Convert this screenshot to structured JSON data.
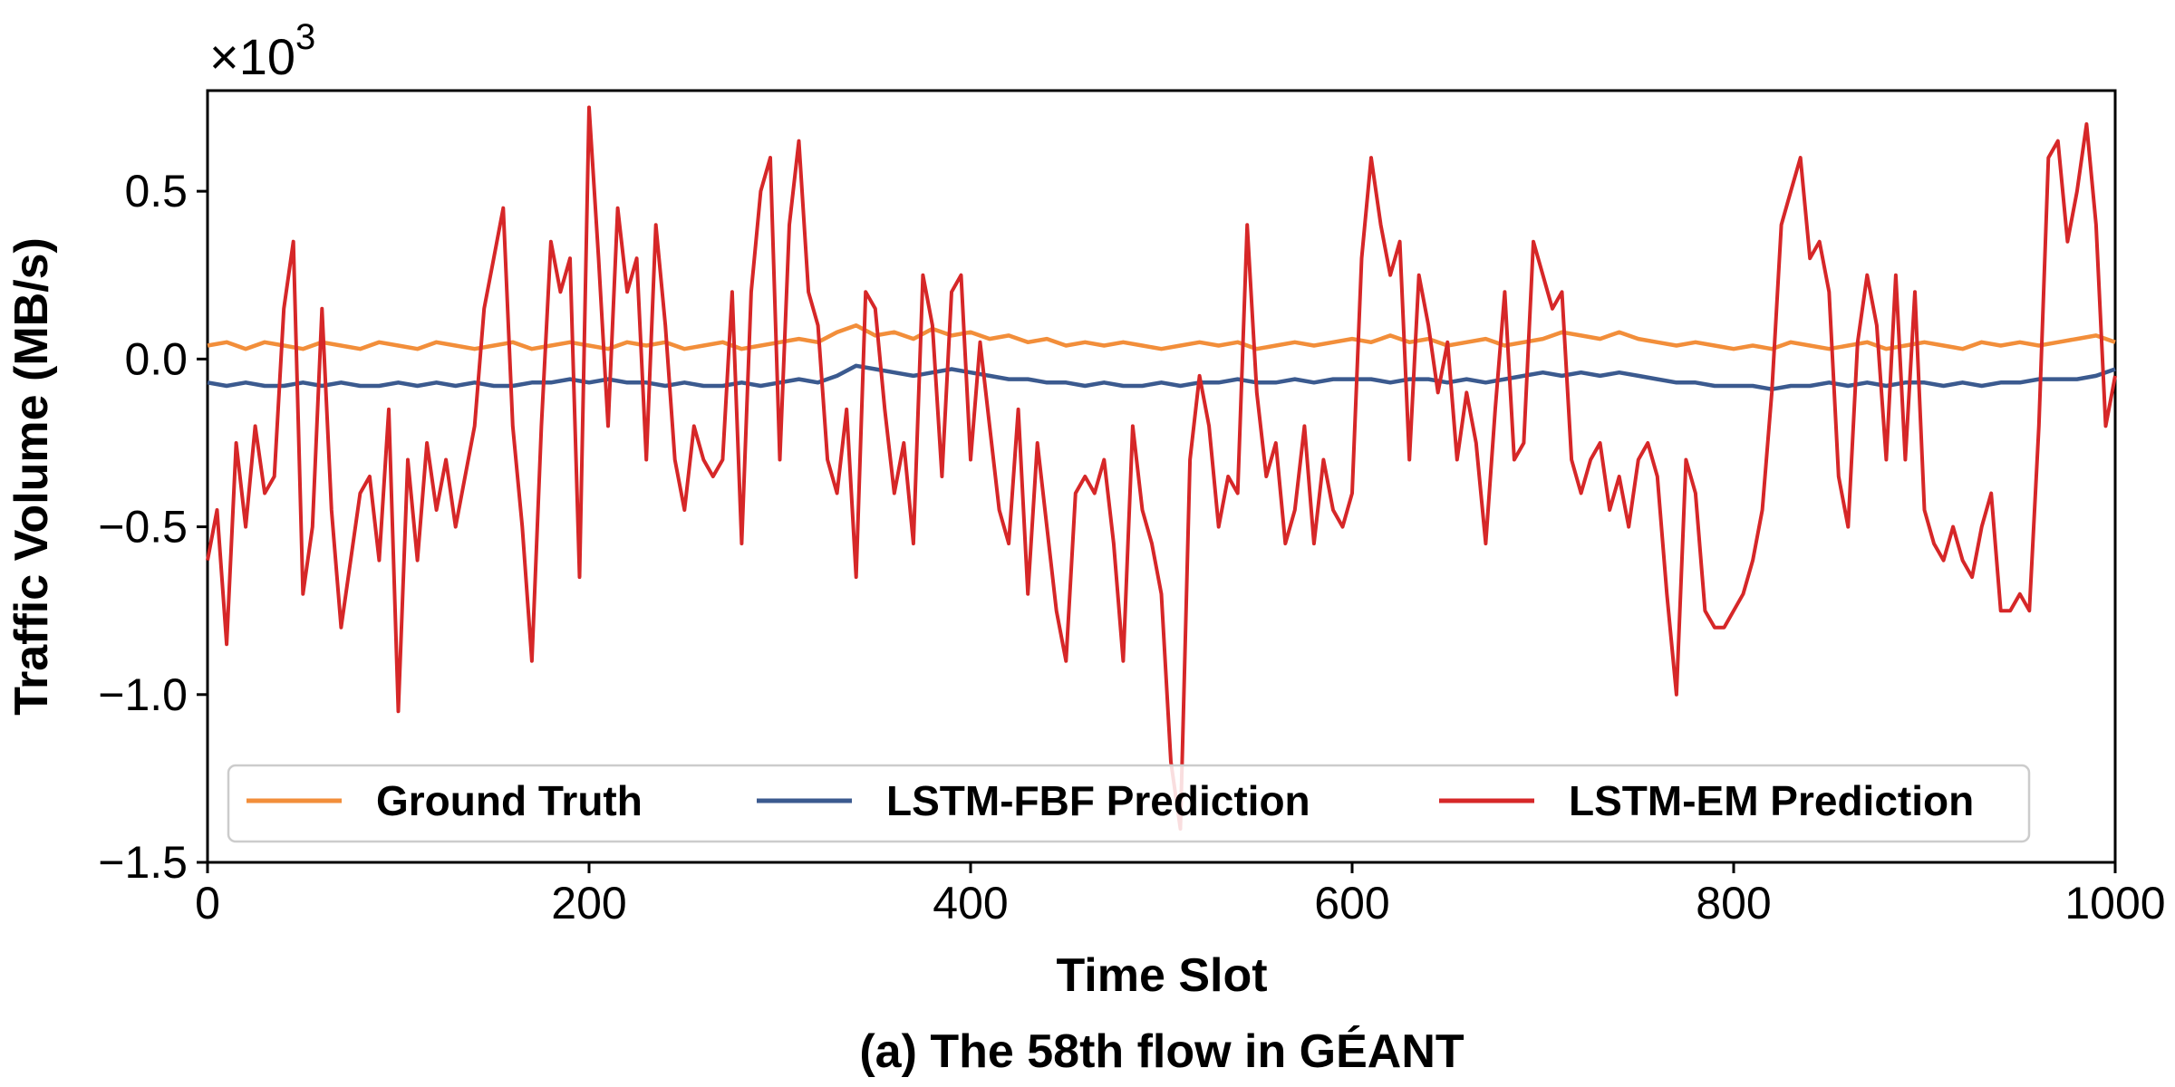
{
  "chart_data": {
    "type": "line",
    "caption": "(a) The 58th flow in GÉANT",
    "xlabel": "Time Slot",
    "ylabel": "Traffic Volume (MB/s)",
    "y_multiplier_base": "×10",
    "y_multiplier_exponent": "3",
    "xlim": [
      0,
      1000
    ],
    "ylim": [
      -1.5,
      0.8
    ],
    "x_ticks": [
      0,
      200,
      400,
      600,
      800,
      1000
    ],
    "x_tick_labels": [
      "0",
      "200",
      "400",
      "600",
      "800",
      "1000"
    ],
    "y_ticks": [
      0.5,
      0.0,
      -0.5,
      -1.0,
      -1.5
    ],
    "y_tick_labels": [
      "0.5",
      "0.0",
      "−0.5",
      "−1.0",
      "−1.5"
    ],
    "grid": false,
    "legend_position": "bottom, single row",
    "series": [
      {
        "name": "Ground Truth",
        "color": "#f28e3a",
        "x": [
          0,
          10,
          20,
          30,
          40,
          50,
          60,
          70,
          80,
          90,
          100,
          110,
          120,
          130,
          140,
          150,
          160,
          170,
          180,
          190,
          200,
          210,
          220,
          230,
          240,
          250,
          260,
          270,
          280,
          290,
          300,
          310,
          320,
          330,
          340,
          350,
          360,
          370,
          380,
          390,
          400,
          410,
          420,
          430,
          440,
          450,
          460,
          470,
          480,
          490,
          500,
          510,
          520,
          530,
          540,
          550,
          560,
          570,
          580,
          590,
          600,
          610,
          620,
          630,
          640,
          650,
          660,
          670,
          680,
          690,
          700,
          710,
          720,
          730,
          740,
          750,
          760,
          770,
          780,
          790,
          800,
          810,
          820,
          830,
          840,
          850,
          860,
          870,
          880,
          890,
          900,
          910,
          920,
          930,
          940,
          950,
          960,
          970,
          980,
          990,
          1000
        ],
        "values": [
          0.04,
          0.05,
          0.03,
          0.05,
          0.04,
          0.03,
          0.05,
          0.04,
          0.03,
          0.05,
          0.04,
          0.03,
          0.05,
          0.04,
          0.03,
          0.04,
          0.05,
          0.03,
          0.04,
          0.05,
          0.04,
          0.03,
          0.05,
          0.04,
          0.05,
          0.03,
          0.04,
          0.05,
          0.03,
          0.04,
          0.05,
          0.06,
          0.05,
          0.08,
          0.1,
          0.07,
          0.08,
          0.06,
          0.09,
          0.07,
          0.08,
          0.06,
          0.07,
          0.05,
          0.06,
          0.04,
          0.05,
          0.04,
          0.05,
          0.04,
          0.03,
          0.04,
          0.05,
          0.04,
          0.05,
          0.03,
          0.04,
          0.05,
          0.04,
          0.05,
          0.06,
          0.05,
          0.07,
          0.05,
          0.06,
          0.04,
          0.05,
          0.06,
          0.04,
          0.05,
          0.06,
          0.08,
          0.07,
          0.06,
          0.08,
          0.06,
          0.05,
          0.04,
          0.05,
          0.04,
          0.03,
          0.04,
          0.03,
          0.05,
          0.04,
          0.03,
          0.04,
          0.05,
          0.03,
          0.04,
          0.05,
          0.04,
          0.03,
          0.05,
          0.04,
          0.05,
          0.04,
          0.05,
          0.06,
          0.07,
          0.05
        ]
      },
      {
        "name": "LSTM-FBF Prediction",
        "color": "#3b5a8f",
        "x": [
          0,
          10,
          20,
          30,
          40,
          50,
          60,
          70,
          80,
          90,
          100,
          110,
          120,
          130,
          140,
          150,
          160,
          170,
          180,
          190,
          200,
          210,
          220,
          230,
          240,
          250,
          260,
          270,
          280,
          290,
          300,
          310,
          320,
          330,
          340,
          350,
          360,
          370,
          380,
          390,
          400,
          410,
          420,
          430,
          440,
          450,
          460,
          470,
          480,
          490,
          500,
          510,
          520,
          530,
          540,
          550,
          560,
          570,
          580,
          590,
          600,
          610,
          620,
          630,
          640,
          650,
          660,
          670,
          680,
          690,
          700,
          710,
          720,
          730,
          740,
          750,
          760,
          770,
          780,
          790,
          800,
          810,
          820,
          830,
          840,
          850,
          860,
          870,
          880,
          890,
          900,
          910,
          920,
          930,
          940,
          950,
          960,
          970,
          980,
          990,
          1000
        ],
        "values": [
          -0.07,
          -0.08,
          -0.07,
          -0.08,
          -0.08,
          -0.07,
          -0.08,
          -0.07,
          -0.08,
          -0.08,
          -0.07,
          -0.08,
          -0.07,
          -0.08,
          -0.07,
          -0.08,
          -0.08,
          -0.07,
          -0.07,
          -0.06,
          -0.07,
          -0.06,
          -0.07,
          -0.07,
          -0.08,
          -0.07,
          -0.08,
          -0.08,
          -0.07,
          -0.08,
          -0.07,
          -0.06,
          -0.07,
          -0.05,
          -0.02,
          -0.03,
          -0.04,
          -0.05,
          -0.04,
          -0.03,
          -0.04,
          -0.05,
          -0.06,
          -0.06,
          -0.07,
          -0.07,
          -0.08,
          -0.07,
          -0.08,
          -0.08,
          -0.07,
          -0.08,
          -0.07,
          -0.07,
          -0.06,
          -0.07,
          -0.07,
          -0.06,
          -0.07,
          -0.06,
          -0.06,
          -0.06,
          -0.07,
          -0.06,
          -0.06,
          -0.07,
          -0.06,
          -0.07,
          -0.06,
          -0.05,
          -0.04,
          -0.05,
          -0.04,
          -0.05,
          -0.04,
          -0.05,
          -0.06,
          -0.07,
          -0.07,
          -0.08,
          -0.08,
          -0.08,
          -0.09,
          -0.08,
          -0.08,
          -0.07,
          -0.08,
          -0.07,
          -0.08,
          -0.07,
          -0.07,
          -0.08,
          -0.07,
          -0.08,
          -0.07,
          -0.07,
          -0.06,
          -0.06,
          -0.06,
          -0.05,
          -0.03
        ]
      },
      {
        "name": "LSTM-EM Prediction",
        "color": "#d62728",
        "x": [
          0,
          5,
          10,
          15,
          20,
          25,
          30,
          35,
          40,
          45,
          50,
          55,
          60,
          65,
          70,
          75,
          80,
          85,
          90,
          95,
          100,
          105,
          110,
          115,
          120,
          125,
          130,
          135,
          140,
          145,
          150,
          155,
          160,
          165,
          170,
          175,
          180,
          185,
          190,
          195,
          200,
          205,
          210,
          215,
          220,
          225,
          230,
          235,
          240,
          245,
          250,
          255,
          260,
          265,
          270,
          275,
          280,
          285,
          290,
          295,
          300,
          305,
          310,
          315,
          320,
          325,
          330,
          335,
          340,
          345,
          350,
          355,
          360,
          365,
          370,
          375,
          380,
          385,
          390,
          395,
          400,
          405,
          410,
          415,
          420,
          425,
          430,
          435,
          440,
          445,
          450,
          455,
          460,
          465,
          470,
          475,
          480,
          485,
          490,
          495,
          500,
          505,
          510,
          515,
          520,
          525,
          530,
          535,
          540,
          545,
          550,
          555,
          560,
          565,
          570,
          575,
          580,
          585,
          590,
          595,
          600,
          605,
          610,
          615,
          620,
          625,
          630,
          635,
          640,
          645,
          650,
          655,
          660,
          665,
          670,
          675,
          680,
          685,
          690,
          695,
          700,
          705,
          710,
          715,
          720,
          725,
          730,
          735,
          740,
          745,
          750,
          755,
          760,
          765,
          770,
          775,
          780,
          785,
          790,
          795,
          800,
          805,
          810,
          815,
          820,
          825,
          830,
          835,
          840,
          845,
          850,
          855,
          860,
          865,
          870,
          875,
          880,
          885,
          890,
          895,
          900,
          905,
          910,
          915,
          920,
          925,
          930,
          935,
          940,
          945,
          950,
          955,
          960,
          965,
          970,
          975,
          980,
          985,
          990,
          995,
          1000
        ],
        "values": [
          -0.6,
          -0.45,
          -0.85,
          -0.25,
          -0.5,
          -0.2,
          -0.4,
          -0.35,
          0.15,
          0.35,
          -0.7,
          -0.5,
          0.15,
          -0.45,
          -0.8,
          -0.6,
          -0.4,
          -0.35,
          -0.6,
          -0.15,
          -1.05,
          -0.3,
          -0.6,
          -0.25,
          -0.45,
          -0.3,
          -0.5,
          -0.35,
          -0.2,
          0.15,
          0.3,
          0.45,
          -0.2,
          -0.5,
          -0.9,
          -0.2,
          0.35,
          0.2,
          0.3,
          -0.65,
          0.75,
          0.3,
          -0.2,
          0.45,
          0.2,
          0.3,
          -0.3,
          0.4,
          0.1,
          -0.3,
          -0.45,
          -0.2,
          -0.3,
          -0.35,
          -0.3,
          0.2,
          -0.55,
          0.2,
          0.5,
          0.6,
          -0.3,
          0.4,
          0.65,
          0.2,
          0.1,
          -0.3,
          -0.4,
          -0.15,
          -0.65,
          0.2,
          0.15,
          -0.15,
          -0.4,
          -0.25,
          -0.55,
          0.25,
          0.1,
          -0.35,
          0.2,
          0.25,
          -0.3,
          0.05,
          -0.2,
          -0.45,
          -0.55,
          -0.15,
          -0.7,
          -0.25,
          -0.5,
          -0.75,
          -0.9,
          -0.4,
          -0.35,
          -0.4,
          -0.3,
          -0.55,
          -0.9,
          -0.2,
          -0.45,
          -0.55,
          -0.7,
          -1.2,
          -1.4,
          -0.3,
          -0.05,
          -0.2,
          -0.5,
          -0.35,
          -0.4,
          0.4,
          -0.1,
          -0.35,
          -0.25,
          -0.55,
          -0.45,
          -0.2,
          -0.55,
          -0.3,
          -0.45,
          -0.5,
          -0.4,
          0.3,
          0.6,
          0.4,
          0.25,
          0.35,
          -0.3,
          0.25,
          0.1,
          -0.1,
          0.05,
          -0.3,
          -0.1,
          -0.25,
          -0.55,
          -0.15,
          0.2,
          -0.3,
          -0.25,
          0.35,
          0.25,
          0.15,
          0.2,
          -0.3,
          -0.4,
          -0.3,
          -0.25,
          -0.45,
          -0.35,
          -0.5,
          -0.3,
          -0.25,
          -0.35,
          -0.7,
          -1.0,
          -0.3,
          -0.4,
          -0.75,
          -0.8,
          -0.8,
          -0.75,
          -0.7,
          -0.6,
          -0.45,
          -0.1,
          0.4,
          0.5,
          0.6,
          0.3,
          0.35,
          0.2,
          -0.35,
          -0.5,
          0.05,
          0.25,
          0.1,
          -0.3,
          0.25,
          -0.3,
          0.2,
          -0.45,
          -0.55,
          -0.6,
          -0.5,
          -0.6,
          -0.65,
          -0.5,
          -0.4,
          -0.75,
          -0.75,
          -0.7,
          -0.75,
          -0.2,
          0.6,
          0.65,
          0.35,
          0.5,
          0.7,
          0.4,
          -0.2,
          -0.05
        ]
      }
    ]
  },
  "legend": {
    "items": [
      {
        "label": "Ground Truth",
        "color": "#f28e3a"
      },
      {
        "label": "LSTM-FBF Prediction",
        "color": "#3b5a8f"
      },
      {
        "label": "LSTM-EM Prediction",
        "color": "#d62728"
      }
    ]
  }
}
